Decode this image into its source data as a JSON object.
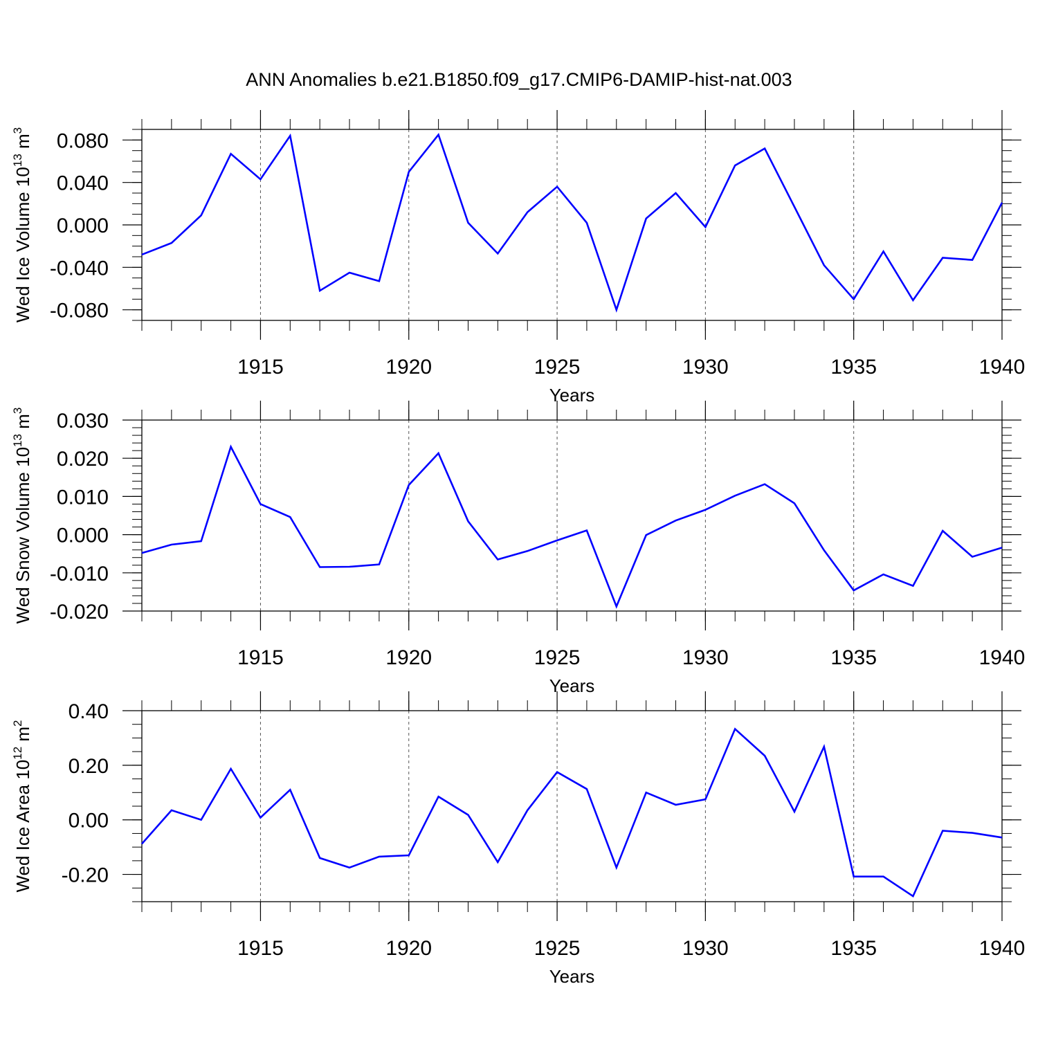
{
  "title": "ANN Anomalies b.e21.B1850.f09_g17.CMIP6-DAMIP-hist-nat.003",
  "colors": {
    "line": "#0000ff",
    "axis": "#000000",
    "grid": "#555555"
  },
  "chart_data": [
    {
      "type": "line",
      "ylabel": "Wed Ice Volume",
      "yunit_base": "10",
      "yunit_exp": "13",
      "yunit_unit": "m",
      "yunit_unit_exp": "3",
      "xlabel": "Years",
      "xlim": [
        1911,
        1940
      ],
      "ylim": [
        -0.09,
        0.09
      ],
      "yticks": [
        -0.08,
        -0.04,
        0.0,
        0.04,
        0.08
      ],
      "ytick_labels": [
        "-0.080",
        "-0.040",
        "0.000",
        "0.040",
        "0.080"
      ],
      "yminor_step": 0.01,
      "xticks": [
        1915,
        1920,
        1925,
        1930,
        1935,
        1940
      ],
      "xtick_labels": [
        "1915",
        "1920",
        "1925",
        "1930",
        "1935",
        "1940"
      ],
      "grid": "vertical dashed at major x ticks",
      "x": [
        1911,
        1912,
        1913,
        1914,
        1915,
        1916,
        1917,
        1918,
        1919,
        1920,
        1921,
        1922,
        1923,
        1924,
        1925,
        1926,
        1927,
        1928,
        1929,
        1930,
        1931,
        1932,
        1933,
        1934,
        1935,
        1936,
        1937,
        1938,
        1939,
        1940
      ],
      "series": [
        {
          "values": [
            -0.028,
            -0.017,
            0.009,
            0.067,
            0.043,
            0.084,
            -0.062,
            -0.045,
            -0.053,
            0.05,
            0.085,
            0.002,
            -0.027,
            0.012,
            0.036,
            0.002,
            -0.08,
            0.006,
            0.03,
            -0.002,
            0.056,
            0.072,
            0.017,
            -0.038,
            -0.07,
            -0.025,
            -0.071,
            -0.031,
            -0.033,
            0.021
          ]
        }
      ]
    },
    {
      "type": "line",
      "ylabel": "Wed Snow Volume",
      "yunit_base": "10",
      "yunit_exp": "13",
      "yunit_unit": "m",
      "yunit_unit_exp": "3",
      "xlabel": "Years",
      "xlim": [
        1911,
        1940
      ],
      "ylim": [
        -0.02,
        0.03
      ],
      "yticks": [
        -0.02,
        -0.01,
        0.0,
        0.01,
        0.02,
        0.03
      ],
      "ytick_labels": [
        "-0.020",
        "-0.010",
        "0.000",
        "0.010",
        "0.020",
        "0.030"
      ],
      "yminor_step": 0.002,
      "xticks": [
        1915,
        1920,
        1925,
        1930,
        1935,
        1940
      ],
      "xtick_labels": [
        "1915",
        "1920",
        "1925",
        "1930",
        "1935",
        "1940"
      ],
      "grid": "vertical dashed at major x ticks",
      "x": [
        1911,
        1912,
        1913,
        1914,
        1915,
        1916,
        1917,
        1918,
        1919,
        1920,
        1921,
        1922,
        1923,
        1924,
        1925,
        1926,
        1927,
        1928,
        1929,
        1930,
        1931,
        1932,
        1933,
        1934,
        1935,
        1936,
        1937,
        1938,
        1939,
        1940
      ],
      "series": [
        {
          "values": [
            -0.0048,
            -0.0026,
            -0.0017,
            0.023,
            0.008,
            0.0046,
            -0.0085,
            -0.0084,
            -0.0078,
            0.013,
            0.0213,
            0.0035,
            -0.0065,
            -0.0043,
            -0.0015,
            0.0011,
            -0.0188,
            -0.0001,
            0.0037,
            0.0065,
            0.0102,
            0.0132,
            0.0082,
            -0.0041,
            -0.0146,
            -0.0104,
            -0.0134,
            0.001,
            -0.0058,
            -0.0034
          ]
        }
      ]
    },
    {
      "type": "line",
      "ylabel": "Wed Ice Area",
      "yunit_base": "10",
      "yunit_exp": "12",
      "yunit_unit": "m",
      "yunit_unit_exp": "2",
      "xlabel": "Years",
      "xlim": [
        1911,
        1940
      ],
      "ylim": [
        -0.3,
        0.4
      ],
      "yticks": [
        -0.2,
        0.0,
        0.2,
        0.4
      ],
      "ytick_labels": [
        "-0.20",
        "0.00",
        "0.20",
        "0.40"
      ],
      "yminor_step": 0.05,
      "xticks": [
        1915,
        1920,
        1925,
        1930,
        1935,
        1940
      ],
      "xtick_labels": [
        "1915",
        "1920",
        "1925",
        "1930",
        "1935",
        "1940"
      ],
      "grid": "vertical dashed at major x ticks",
      "x": [
        1911,
        1912,
        1913,
        1914,
        1915,
        1916,
        1917,
        1918,
        1919,
        1920,
        1921,
        1922,
        1923,
        1924,
        1925,
        1926,
        1927,
        1928,
        1929,
        1930,
        1931,
        1932,
        1933,
        1934,
        1935,
        1936,
        1937,
        1938,
        1939,
        1940
      ],
      "series": [
        {
          "values": [
            -0.088,
            0.035,
            0.0,
            0.187,
            0.008,
            0.11,
            -0.14,
            -0.175,
            -0.135,
            -0.13,
            0.085,
            0.018,
            -0.155,
            0.035,
            0.175,
            0.113,
            -0.175,
            0.1,
            0.055,
            0.075,
            0.333,
            0.235,
            0.03,
            0.268,
            -0.208,
            -0.208,
            -0.28,
            -0.04,
            -0.048,
            -0.065
          ]
        }
      ]
    }
  ]
}
